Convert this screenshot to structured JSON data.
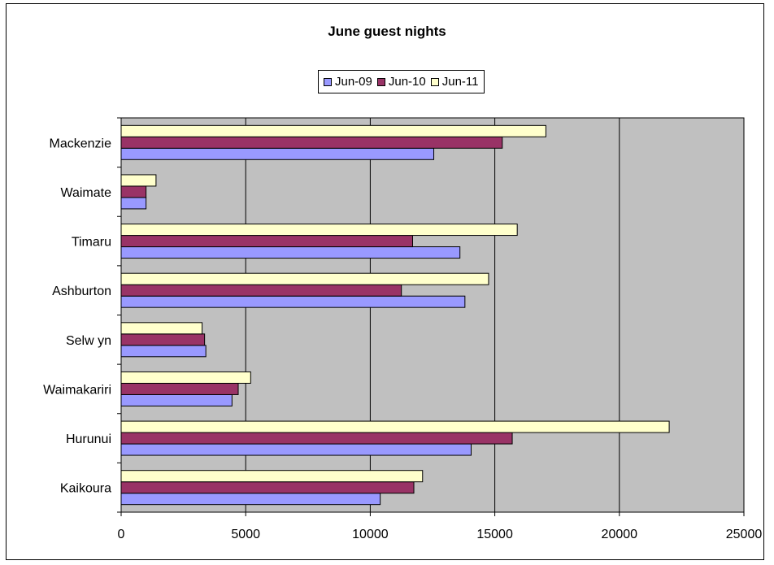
{
  "chart_data": {
    "type": "bar",
    "orientation": "horizontal",
    "title": "June guest nights",
    "categories": [
      "Kaikoura",
      "Hurunui",
      "Waimakariri",
      "Selw yn",
      "Ashburton",
      "Timaru",
      "Waimate",
      "Mackenzie"
    ],
    "series": [
      {
        "name": "Jun-09",
        "color": "#9999ff",
        "values": [
          10400,
          14050,
          4450,
          3400,
          13800,
          13600,
          1000,
          12550
        ]
      },
      {
        "name": "Jun-10",
        "color": "#993366",
        "values": [
          11750,
          15700,
          4700,
          3350,
          11250,
          11700,
          1000,
          15300
        ]
      },
      {
        "name": "Jun-11",
        "color": "#ffffcc",
        "values": [
          12100,
          22000,
          5200,
          3250,
          14750,
          15900,
          1400,
          17050
        ]
      }
    ],
    "xlim": [
      0,
      25000
    ],
    "xticks": [
      0,
      5000,
      10000,
      15000,
      20000,
      25000
    ],
    "xtick_labels": [
      "0",
      "5000",
      "10000",
      "15000",
      "20000",
      "25000"
    ],
    "grid": true,
    "plot_background": "#c0c0c0",
    "legend_position": "top"
  }
}
